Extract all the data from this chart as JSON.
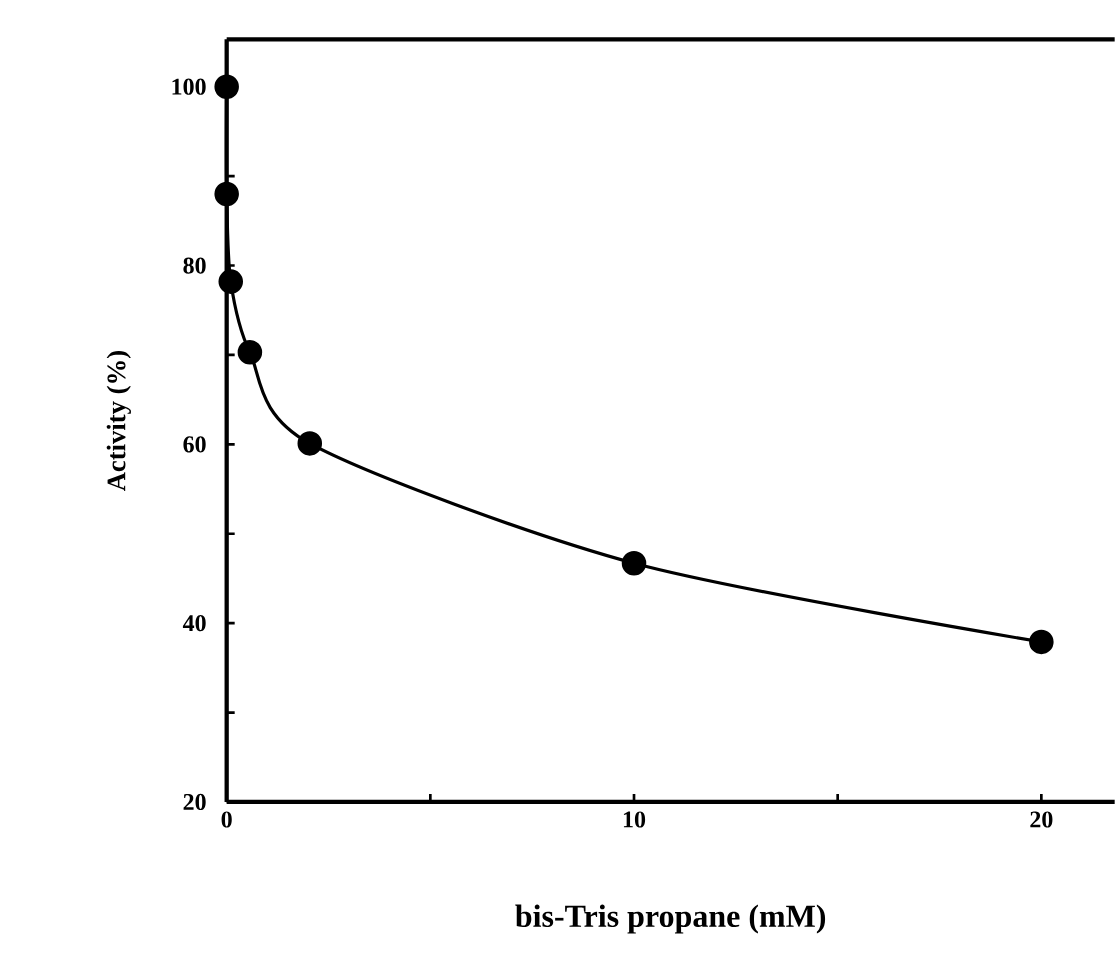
{
  "chart_data": {
    "type": "line",
    "xlabel": "bis-Tris propane (mM)",
    "ylabel": "Activity (%)",
    "x": [
      0,
      0,
      0.1,
      0.57,
      2.04,
      10,
      20
    ],
    "values": [
      100,
      88,
      78.2,
      70.3,
      60.1,
      46.7,
      37.9
    ],
    "color": "#000000",
    "marker": "circle",
    "line_style": "solid",
    "xlim": [
      0,
      21.8
    ],
    "ylim": [
      20,
      105.3
    ],
    "xticks": [
      0,
      {
        "value": 5,
        "label": null
      },
      10,
      {
        "value": 15,
        "label": null
      },
      20
    ],
    "yticks": [
      20,
      {
        "value": 30,
        "label": null
      },
      40,
      {
        "value": 50,
        "label": null
      },
      60,
      {
        "value": 70,
        "label": null
      },
      80,
      {
        "value": 90,
        "label": null
      },
      100
    ],
    "grid": false
  }
}
